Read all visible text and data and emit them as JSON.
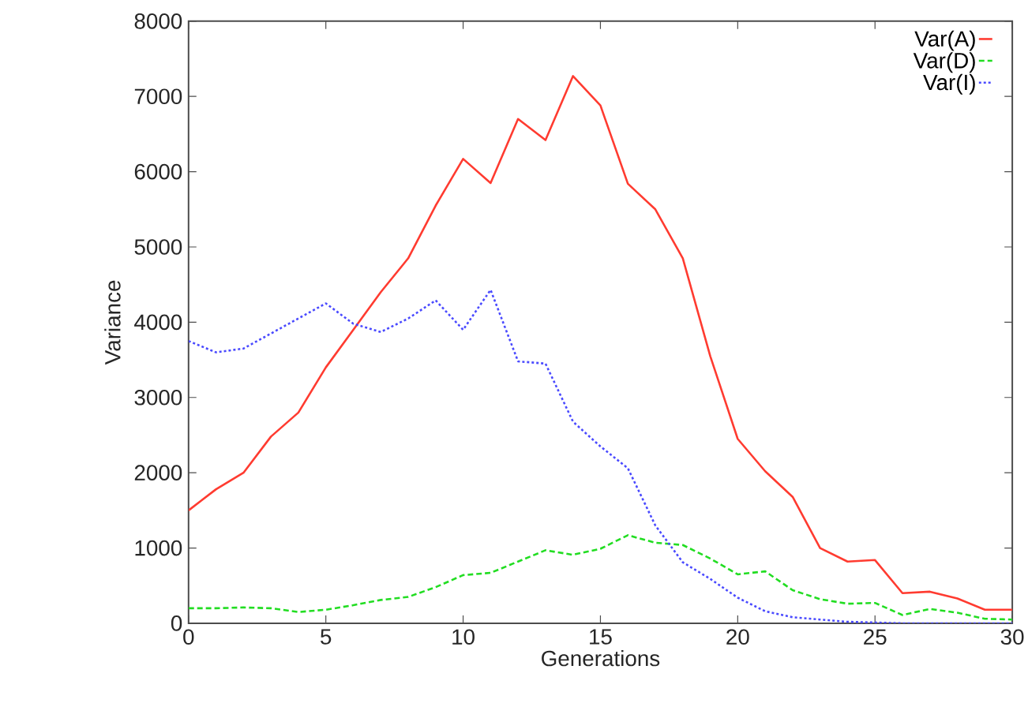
{
  "chart_data": {
    "type": "line",
    "xlabel": "Generations",
    "ylabel": "Variance",
    "x": [
      0,
      1,
      2,
      3,
      4,
      5,
      6,
      7,
      8,
      9,
      10,
      11,
      12,
      13,
      14,
      15,
      16,
      17,
      18,
      19,
      20,
      21,
      22,
      23,
      24,
      25,
      26,
      27,
      28,
      29,
      30
    ],
    "xlim": [
      0,
      30
    ],
    "xticks": [
      0,
      5,
      10,
      15,
      20,
      25,
      30
    ],
    "ylim": [
      0,
      8000
    ],
    "yticks": [
      0,
      1000,
      2000,
      3000,
      4000,
      5000,
      6000,
      7000,
      8000
    ],
    "legend": "top right",
    "grid": false,
    "marker": "none",
    "series": [
      {
        "name": "Var(A)",
        "color": "#ff3b30",
        "line_style": "solid",
        "values": [
          1500,
          1780,
          2000,
          2480,
          2800,
          3400,
          3900,
          4400,
          4850,
          5550,
          6170,
          5850,
          6700,
          6420,
          7270,
          6880,
          5840,
          5500,
          4850,
          3550,
          2450,
          2020,
          1680,
          1000,
          820,
          840,
          400,
          420,
          330,
          180,
          180
        ]
      },
      {
        "name": "Var(D)",
        "color": "#22dd22",
        "line_style": "dashed",
        "values": [
          200,
          200,
          210,
          200,
          150,
          180,
          240,
          310,
          350,
          480,
          640,
          670,
          820,
          970,
          910,
          990,
          1170,
          1070,
          1040,
          860,
          650,
          690,
          440,
          320,
          260,
          270,
          110,
          190,
          140,
          60,
          50
        ]
      },
      {
        "name": "Var(I)",
        "color": "#4a4aff",
        "line_style": "dotted",
        "values": [
          3750,
          3600,
          3650,
          3850,
          4050,
          4250,
          3980,
          3870,
          4050,
          4290,
          3900,
          4430,
          3480,
          3450,
          2680,
          2350,
          2060,
          1300,
          810,
          590,
          340,
          160,
          80,
          50,
          20,
          10,
          0,
          0,
          0,
          0,
          0
        ]
      }
    ]
  }
}
